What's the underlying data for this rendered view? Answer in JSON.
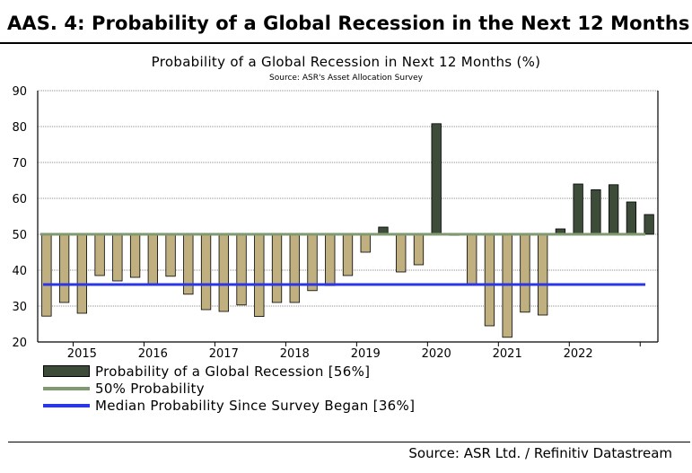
{
  "header": {
    "title": "AAS. 4: Probability of a Global Recession in the Next 12 Months"
  },
  "footer": {
    "source": "Source: ASR Ltd. / Refinitiv Datastream"
  },
  "colors": {
    "above": "#3d4c39",
    "below": "#c0b080",
    "threshold": "#7f9a70",
    "median": "#2b36e6",
    "grid": "#8c8c8c"
  },
  "chart_data": {
    "type": "bar",
    "title": "Probability of a Global Recession in Next 12 Months (%)",
    "subtitle": "Source: ASR's Asset Allocation Survey",
    "ylim": [
      20,
      90
    ],
    "yticks": [
      20,
      30,
      40,
      50,
      60,
      70,
      80,
      90
    ],
    "grid": true,
    "baseline": 50,
    "x_labels": [
      "2015",
      "2016",
      "2017",
      "2018",
      "2019",
      "2020",
      "2021",
      "2022"
    ],
    "x_label_bar_index": [
      2,
      6,
      10,
      14,
      18,
      22,
      26,
      30
    ],
    "values": [
      27.2,
      31,
      28,
      38.5,
      37,
      38,
      36,
      38.3,
      33.3,
      29,
      28.5,
      30.3,
      27.1,
      31,
      31,
      34.3,
      35.7,
      38.5,
      45,
      52,
      39.5,
      41.5,
      80.8,
      49.7,
      36,
      24.5,
      21.3,
      28.3,
      27.5,
      51.5,
      64,
      62.4,
      63.8,
      59,
      55.5
    ],
    "series": [
      {
        "name": "Probability of a Global Recession [56%]",
        "kind": "bars"
      },
      {
        "name": "50% Probability",
        "kind": "line",
        "value": 50
      },
      {
        "name": "Median Probability Since Survey Began [36%]",
        "kind": "line",
        "value": 36
      }
    ],
    "legend_position": "bottom-left"
  }
}
